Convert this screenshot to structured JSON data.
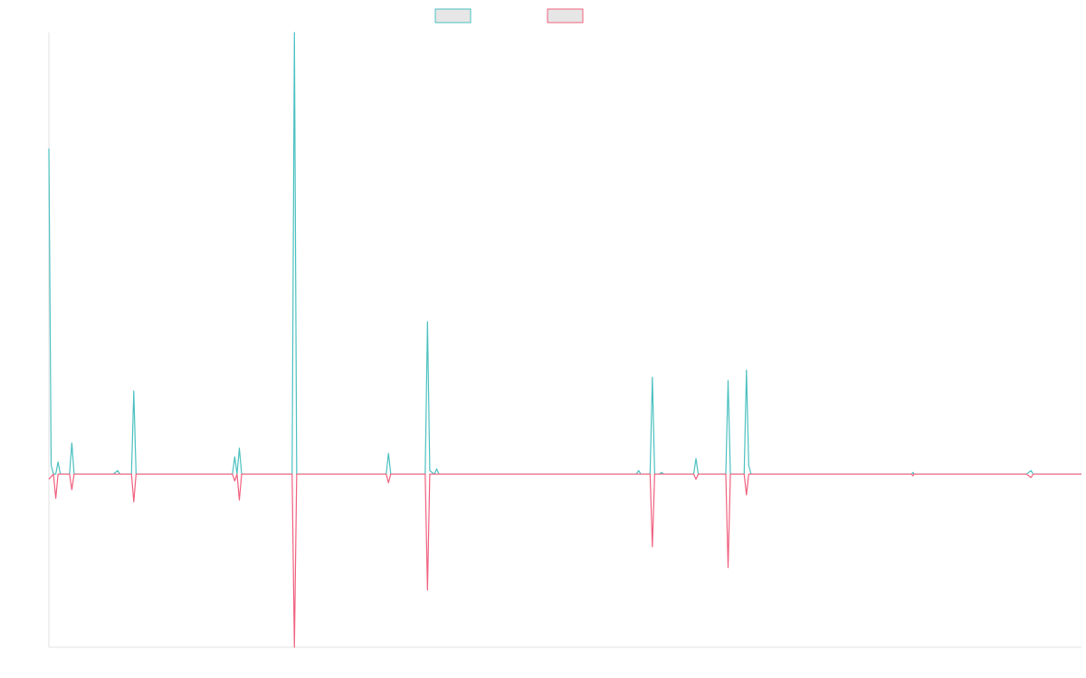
{
  "chart_data": {
    "type": "line",
    "title": "",
    "xlabel": "",
    "ylabel": "",
    "grid": false,
    "legend": "top-center",
    "x": [
      0,
      1,
      2,
      3,
      4,
      5,
      6,
      7,
      8,
      9,
      10,
      11,
      12,
      13,
      14,
      15,
      16,
      17,
      18,
      19,
      20,
      21,
      22,
      23,
      24,
      25,
      26,
      27,
      28,
      29,
      30,
      31,
      32,
      33,
      34,
      35,
      36,
      37,
      38,
      39,
      40,
      41,
      42,
      43,
      44,
      45,
      46,
      47,
      48,
      49,
      50,
      51,
      52,
      53,
      54,
      55,
      56,
      57,
      58,
      59,
      60,
      61,
      62,
      63,
      64,
      65,
      66,
      67,
      68,
      69,
      70,
      71,
      72,
      73,
      74,
      75,
      76,
      77,
      78,
      79,
      80,
      81,
      82,
      83,
      84,
      85,
      86,
      87,
      88,
      89,
      90,
      91,
      92,
      93,
      94,
      95,
      96,
      97,
      98,
      99,
      100,
      101,
      102,
      103,
      104,
      105,
      106,
      107,
      108,
      109,
      110,
      111,
      112,
      113,
      114,
      115,
      116,
      117,
      118,
      119,
      120,
      121,
      122,
      123,
      124,
      125,
      126,
      127,
      128,
      129,
      130,
      131,
      132,
      133,
      134,
      135,
      136,
      137,
      138,
      139,
      140,
      141,
      142,
      143,
      144,
      145,
      146,
      147,
      148,
      149,
      150,
      151,
      152,
      153,
      154,
      155,
      156,
      157,
      158,
      159,
      160,
      161,
      162,
      163,
      164,
      165,
      166,
      167,
      168,
      169,
      170,
      171,
      172,
      173,
      174,
      175,
      176,
      177,
      178,
      179,
      180,
      181,
      182,
      183,
      184,
      185,
      186,
      187,
      188,
      189,
      190,
      191,
      192,
      193,
      194,
      195,
      196,
      197,
      198,
      199,
      200,
      201,
      202,
      203,
      204,
      205,
      206,
      207,
      208,
      209,
      210,
      211,
      212,
      213,
      214,
      215,
      216,
      217,
      218,
      219,
      220,
      221,
      222,
      223,
      224,
      225,
      226,
      227,
      228,
      229,
      230,
      231,
      232,
      233,
      234,
      235,
      236,
      237,
      238,
      239,
      240,
      241,
      242,
      243,
      244,
      245,
      246,
      247,
      248,
      249,
      250,
      251,
      252,
      253,
      254,
      255,
      256,
      257,
      258,
      259,
      260,
      261,
      262,
      263,
      264,
      265,
      266,
      267,
      268,
      269,
      270,
      271,
      272,
      273,
      274,
      275,
      276,
      277,
      278,
      279,
      280,
      281,
      282,
      283,
      284,
      285,
      286,
      287,
      288,
      289,
      290,
      291,
      292,
      293,
      294,
      295,
      296,
      297,
      298,
      299,
      300,
      301,
      302,
      303,
      304,
      305,
      306,
      307,
      308,
      309,
      310,
      311,
      312,
      313,
      314,
      315,
      316,
      317,
      318,
      319,
      320,
      321,
      322,
      323,
      324,
      325,
      326,
      327,
      328,
      329,
      330,
      331,
      332,
      333,
      334,
      335,
      336,
      337,
      338,
      339,
      340,
      341,
      342,
      343,
      344,
      345,
      346,
      347,
      348,
      349,
      350,
      351,
      352,
      353,
      354,
      355,
      356,
      357,
      358,
      359,
      360,
      361,
      362,
      363,
      364,
      365,
      366,
      367,
      368,
      369,
      370,
      371,
      372,
      373,
      374,
      375,
      376,
      377,
      378,
      379,
      380,
      381,
      382,
      383,
      384,
      385,
      386,
      387,
      388,
      389,
      390,
      391,
      392,
      393,
      394,
      395,
      396,
      397,
      398,
      399,
      400,
      401,
      402,
      403,
      404,
      405,
      406,
      407,
      408,
      409,
      410,
      411,
      412,
      413,
      414,
      415,
      416,
      417,
      418,
      419,
      420,
      421,
      422,
      423,
      424,
      425,
      426,
      427,
      428,
      429,
      430,
      431,
      432,
      433,
      434,
      435,
      436,
      437,
      438,
      439,
      440,
      441,
      442,
      443,
      444,
      445,
      446,
      447,
      448,
      449,
      450
    ],
    "ylim": [
      -1.0,
      2.55
    ],
    "xlim": [
      0,
      450
    ],
    "series": [
      {
        "color": "#4bc0c0",
        "points": [
          [
            0,
            1.88
          ],
          [
            1,
            0.05
          ],
          [
            2,
            0.0
          ],
          [
            3,
            0.0
          ],
          [
            4,
            0.07
          ],
          [
            5,
            0.0
          ],
          [
            9,
            0.0
          ],
          [
            10,
            0.18
          ],
          [
            11,
            0.0
          ],
          [
            28,
            0.0
          ],
          [
            30,
            0.02
          ],
          [
            31,
            0.0
          ],
          [
            36,
            0.0
          ],
          [
            37,
            0.48
          ],
          [
            38,
            0.0
          ],
          [
            80,
            0.0
          ],
          [
            81,
            0.1
          ],
          [
            82,
            0.0
          ],
          [
            83,
            0.15
          ],
          [
            84,
            0.0
          ],
          [
            106,
            0.0
          ],
          [
            107,
            2.55
          ],
          [
            108,
            0.0
          ],
          [
            147,
            0.0
          ],
          [
            148,
            0.12
          ],
          [
            149,
            0.0
          ],
          [
            164,
            0.0
          ],
          [
            165,
            0.88
          ],
          [
            166,
            0.02
          ],
          [
            168,
            0.0
          ],
          [
            169,
            0.03
          ],
          [
            170,
            0.0
          ],
          [
            256,
            0.0
          ],
          [
            257,
            0.02
          ],
          [
            258,
            0.0
          ],
          [
            262,
            0.0
          ],
          [
            263,
            0.56
          ],
          [
            264,
            0.0
          ],
          [
            266,
            0.0
          ],
          [
            267,
            0.01
          ],
          [
            268,
            0.0
          ],
          [
            281,
            0.0
          ],
          [
            282,
            0.09
          ],
          [
            283,
            0.0
          ],
          [
            295,
            0.0
          ],
          [
            296,
            0.54
          ],
          [
            297,
            0.0
          ],
          [
            303,
            0.0
          ],
          [
            304,
            0.6
          ],
          [
            305,
            0.05
          ],
          [
            306,
            0.0
          ],
          [
            376,
            0.0
          ],
          [
            376.6,
            0.01
          ],
          [
            377,
            0.0
          ],
          [
            426,
            0.0
          ],
          [
            428,
            0.02
          ],
          [
            429,
            0.0
          ],
          [
            450,
            0.0
          ]
        ]
      },
      {
        "color": "#f0607e",
        "points": [
          [
            0,
            -0.03
          ],
          [
            2,
            0.0
          ],
          [
            3,
            -0.14
          ],
          [
            4,
            0.0
          ],
          [
            9,
            0.0
          ],
          [
            10,
            -0.09
          ],
          [
            11,
            0.0
          ],
          [
            36,
            0.0
          ],
          [
            37,
            -0.16
          ],
          [
            38,
            0.0
          ],
          [
            80,
            0.0
          ],
          [
            81,
            -0.04
          ],
          [
            82,
            0.0
          ],
          [
            83,
            -0.15
          ],
          [
            84,
            0.0
          ],
          [
            106,
            0.0
          ],
          [
            107,
            -1.0
          ],
          [
            108,
            0.0
          ],
          [
            147,
            0.0
          ],
          [
            148,
            -0.05
          ],
          [
            149,
            0.0
          ],
          [
            164,
            0.0
          ],
          [
            165,
            -0.67
          ],
          [
            166,
            0.0
          ],
          [
            262,
            0.0
          ],
          [
            263,
            -0.42
          ],
          [
            264,
            0.0
          ],
          [
            281,
            0.0
          ],
          [
            282,
            -0.03
          ],
          [
            283,
            0.0
          ],
          [
            295,
            0.0
          ],
          [
            296,
            -0.54
          ],
          [
            297,
            0.0
          ],
          [
            303,
            0.0
          ],
          [
            304,
            -0.12
          ],
          [
            305,
            0.0
          ],
          [
            376,
            0.0
          ],
          [
            376.6,
            -0.01
          ],
          [
            377,
            0.0
          ],
          [
            426,
            0.0
          ],
          [
            428,
            -0.02
          ],
          [
            429,
            0.0
          ],
          [
            450,
            0.0
          ]
        ]
      }
    ]
  }
}
